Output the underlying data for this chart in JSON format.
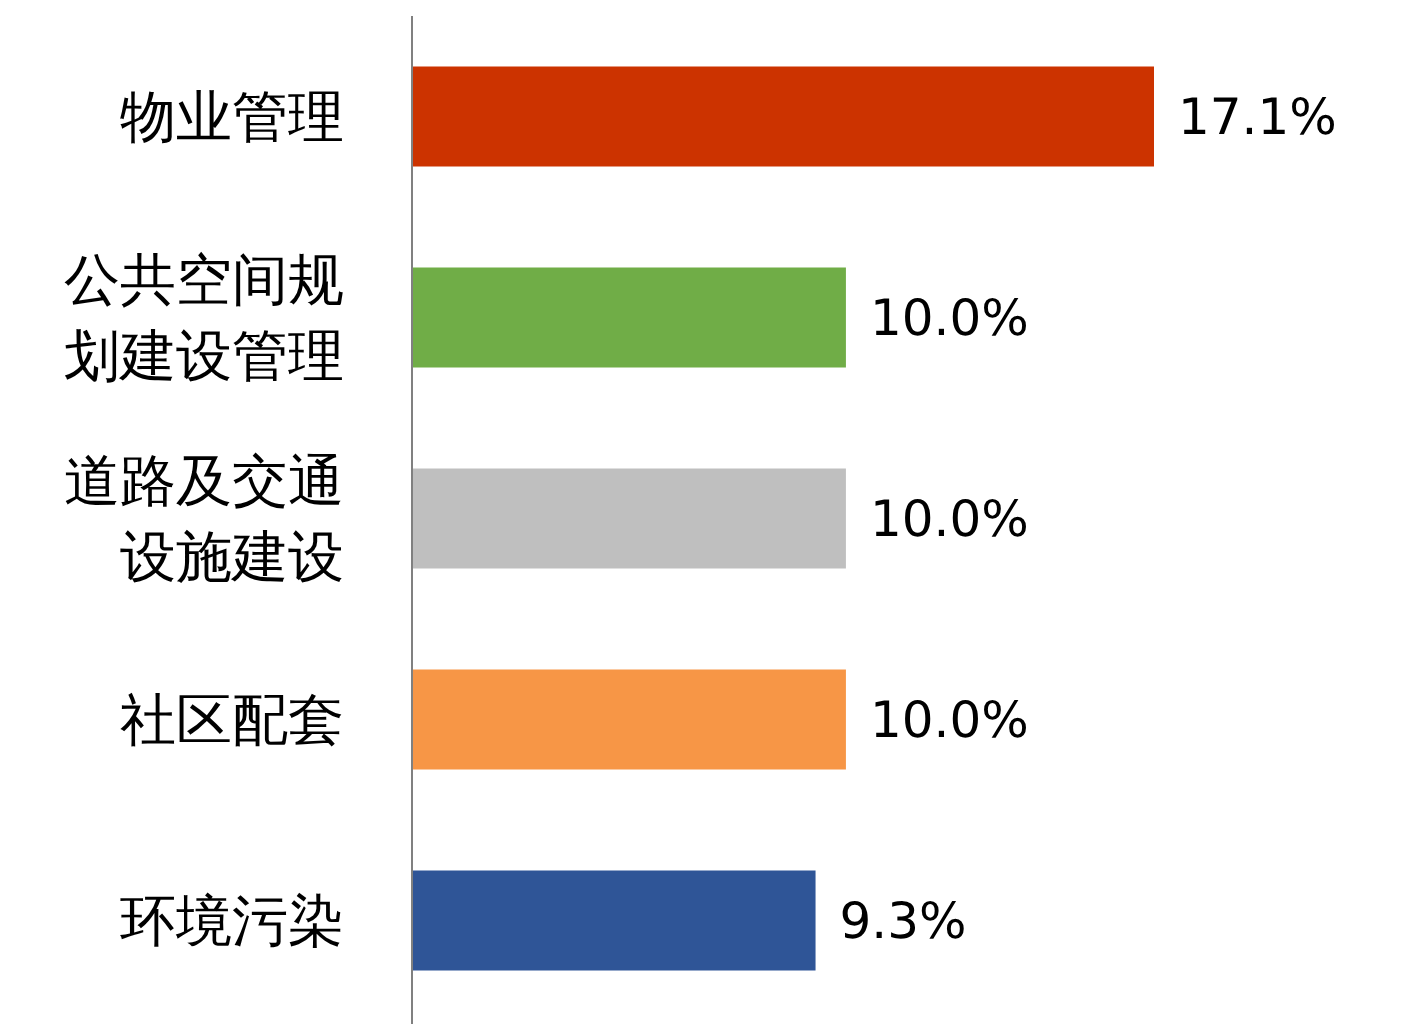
{
  "chart_data": {
    "type": "bar",
    "orientation": "horizontal",
    "categories": [
      "物业管理",
      "公共空间规划建设管理",
      "道路及交通设施建设",
      "社区配套",
      "环境污染"
    ],
    "values": [
      17.1,
      10.0,
      10.0,
      10.0,
      9.3
    ],
    "colors": [
      "#cc3300",
      "#70ad47",
      "#bfbfbf",
      "#f79646",
      "#2f5597"
    ],
    "value_labels": [
      "17.1%",
      "10.0%",
      "10.0%",
      "10.0%",
      "9.3%"
    ]
  }
}
